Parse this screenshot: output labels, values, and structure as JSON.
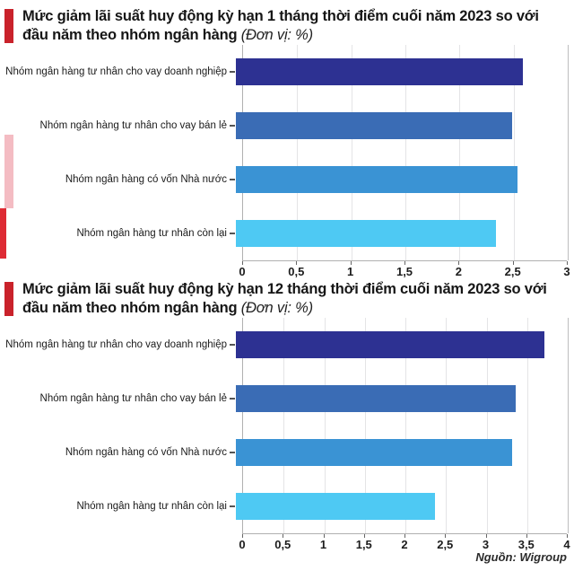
{
  "page": {
    "background": "#ffffff",
    "accent_red": "#c9222b",
    "accent_pink": "#f4bcc3",
    "left_red_strip": "#de2b34",
    "axis_line_color": "#b0b0b0",
    "grid_color": "#e4e4e6"
  },
  "source": "Nguồn: Wigroup",
  "chart_data": [
    {
      "type": "bar",
      "orientation": "horizontal",
      "title": "Mức giảm lãi suất huy động kỳ hạn 1 tháng thời điểm cuối năm 2023 so với đầu năm theo nhóm ngân hàng",
      "unit_label": "(Đơn vị: %)",
      "categories": [
        "Nhóm ngân hàng tư nhân cho vay doanh nghiệp",
        "Nhóm ngân hàng tư nhân cho vay bán lẻ",
        "Nhóm ngân hàng có vốn Nhà nước",
        "Nhóm ngân hàng tư nhân còn lại"
      ],
      "values": [
        2.65,
        2.55,
        2.6,
        2.4
      ],
      "bar_colors": [
        "#2d3192",
        "#3a6cb5",
        "#3a93d4",
        "#4ec9f3"
      ],
      "xlim": [
        0,
        3
      ],
      "xticks": [
        0,
        0.5,
        1,
        1.5,
        2,
        2.5,
        3
      ],
      "xtick_labels": [
        "0",
        "0,5",
        "1",
        "1,5",
        "2",
        "2,5",
        "3"
      ],
      "grid": "vertical",
      "legend": "none"
    },
    {
      "type": "bar",
      "orientation": "horizontal",
      "title": "Mức giảm lãi suất huy động kỳ hạn 12 tháng thời điểm cuối năm 2023 so với đầu năm theo nhóm ngân hàng",
      "unit_label": "(Đơn vị: %)",
      "categories": [
        "Nhóm ngân hàng tư nhân cho vay doanh nghiệp",
        "Nhóm ngân hàng tư nhân cho vay bán lẻ",
        "Nhóm ngân hàng có vốn Nhà nước",
        "Nhóm ngân hàng tư nhân còn lại"
      ],
      "values": [
        3.8,
        3.45,
        3.4,
        2.45
      ],
      "bar_colors": [
        "#2d3192",
        "#3a6cb5",
        "#3a93d4",
        "#4ec9f3"
      ],
      "xlim": [
        0,
        4
      ],
      "xticks": [
        0,
        0.5,
        1,
        1.5,
        2,
        2.5,
        3,
        3.5,
        4
      ],
      "xtick_labels": [
        "0",
        "0,5",
        "1",
        "1,5",
        "2",
        "2,5",
        "3",
        "3,5",
        "4"
      ],
      "grid": "vertical",
      "legend": "none"
    }
  ]
}
